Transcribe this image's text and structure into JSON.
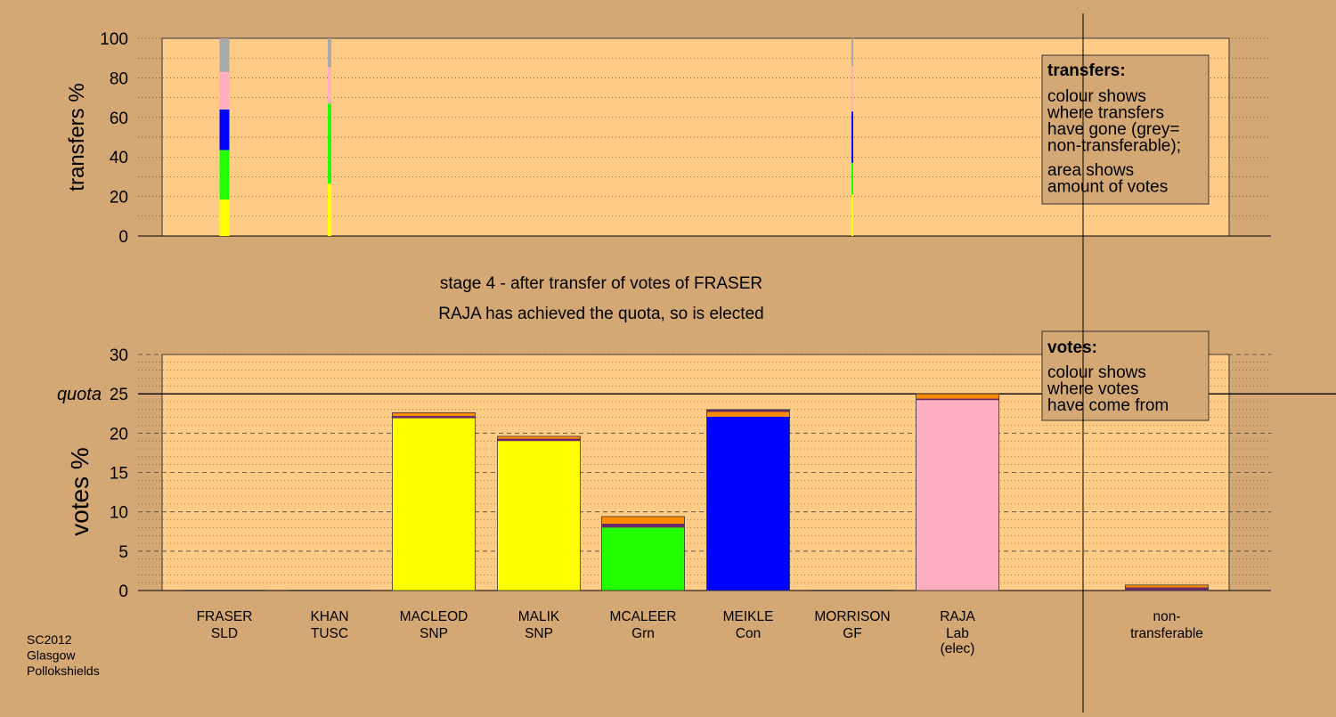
{
  "colors": {
    "background": "#d4a874",
    "panel": "#ffcc88",
    "gridline": "#444444",
    "SNP": "#ffff00",
    "Grn": "#22ff00",
    "Con": "#0000ff",
    "Lab": "#ffb0c0",
    "nontransferable": "#aaaaaa",
    "transfer_top": "#ff8c00",
    "transfer_mid": "#6a2a6a"
  },
  "stage_title": "stage 4 - after transfer of votes of FRASER",
  "stage_subtitle": "RAJA has achieved the quota, so is elected",
  "footer": [
    "SC2012",
    "Glasgow",
    "Pollokshields"
  ],
  "legend_transfers": {
    "heading": "transfers:",
    "lines1": [
      "colour shows",
      "where transfers",
      "have gone (grey=",
      "non-transferable);"
    ],
    "lines2": [
      "area shows",
      "amount of votes"
    ]
  },
  "legend_votes": {
    "heading": "votes:",
    "lines": [
      "colour shows",
      "where votes",
      "have come from"
    ]
  },
  "chart_data": [
    {
      "type": "bar",
      "name": "transfers",
      "ylabel": "transfers %",
      "ylim": [
        0,
        100
      ],
      "yticks": [
        0,
        20,
        40,
        60,
        80,
        100
      ],
      "grid": true,
      "columns": [
        {
          "candidate": "FRASER",
          "segments": [
            {
              "party": "SNP",
              "value": 18.5
            },
            {
              "party": "Grn",
              "value": 25
            },
            {
              "party": "Con",
              "value": 20.5
            },
            {
              "party": "Lab",
              "value": 19
            },
            {
              "party": "nontransferable",
              "value": 17
            }
          ]
        },
        {
          "candidate": "KHAN",
          "segments": [
            {
              "party": "SNP",
              "value": 26.5
            },
            {
              "party": "Grn",
              "value": 40.5
            },
            {
              "party": "Lab",
              "value": 18.5
            },
            {
              "party": "nontransferable",
              "value": 14.5
            }
          ]
        },
        {
          "candidate": "MORRISON",
          "segments": [
            {
              "party": "SNP",
              "value": 21
            },
            {
              "party": "Grn",
              "value": 16
            },
            {
              "party": "Con",
              "value": 26
            },
            {
              "party": "Lab",
              "value": 23
            },
            {
              "party": "nontransferable",
              "value": 14
            }
          ]
        }
      ]
    },
    {
      "type": "bar",
      "name": "votes",
      "ylabel": "votes %",
      "ylim": [
        0,
        30
      ],
      "yticks": [
        0,
        5,
        10,
        15,
        20,
        25,
        30
      ],
      "quota": 25,
      "quota_label": "quota",
      "grid": true,
      "categories": [
        {
          "name": "FRASER",
          "party": "SLD",
          "extra": "",
          "segments": []
        },
        {
          "name": "KHAN",
          "party": "TUSC",
          "extra": "",
          "segments": []
        },
        {
          "name": "MACLEOD",
          "party": "SNP",
          "extra": "",
          "segments": [
            {
              "color": "SNP",
              "value": 21.9
            },
            {
              "color": "transfer_mid",
              "value": 0.3
            },
            {
              "color": "transfer_top",
              "value": 0.4
            }
          ]
        },
        {
          "name": "MALIK",
          "party": "SNP",
          "extra": "",
          "segments": [
            {
              "color": "SNP",
              "value": 19.0
            },
            {
              "color": "transfer_mid",
              "value": 0.3
            },
            {
              "color": "transfer_top",
              "value": 0.3
            }
          ]
        },
        {
          "name": "MCALEER",
          "party": "Grn",
          "extra": "",
          "segments": [
            {
              "color": "Grn",
              "value": 8.0
            },
            {
              "color": "transfer_mid",
              "value": 0.5
            },
            {
              "color": "transfer_top",
              "value": 0.9
            }
          ]
        },
        {
          "name": "MEIKLE",
          "party": "Con",
          "extra": "",
          "segments": [
            {
              "color": "Con",
              "value": 22.1
            },
            {
              "color": "transfer_top",
              "value": 0.6
            },
            {
              "color": "transfer_mid",
              "value": 0.3
            }
          ]
        },
        {
          "name": "MORRISON",
          "party": "GF",
          "extra": "",
          "segments": []
        },
        {
          "name": "RAJA",
          "party": "Lab",
          "extra": "(elec)",
          "segments": [
            {
              "color": "Lab",
              "value": 24.2
            },
            {
              "color": "transfer_mid",
              "value": 0.2
            },
            {
              "color": "transfer_top",
              "value": 0.6
            }
          ]
        },
        {
          "name": "non-",
          "party": "transferable",
          "extra": "",
          "segments": [
            {
              "color": "transfer_mid",
              "value": 0.4
            },
            {
              "color": "transfer_top",
              "value": 0.3
            }
          ]
        }
      ]
    }
  ]
}
